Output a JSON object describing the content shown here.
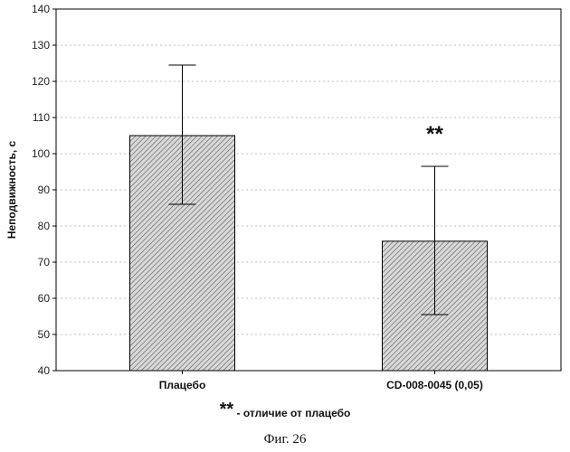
{
  "chart_data": {
    "type": "bar",
    "categories": [
      "Плацебо",
      "CD-008-0045 (0,05)"
    ],
    "values": [
      105,
      75.8
    ],
    "error_upper": [
      124.5,
      96.5
    ],
    "error_lower": [
      86,
      55.5
    ],
    "annotations": [
      {
        "category_index": 1,
        "text": "**"
      }
    ],
    "xlabel": "",
    "ylabel": "Неподвижность, с",
    "ylim": [
      40,
      140
    ],
    "yticks": [
      40,
      50,
      60,
      70,
      80,
      90,
      100,
      110,
      120,
      130,
      140
    ],
    "grid": "horizontal dotted",
    "bar_fill": "diagonal hatch",
    "colors": {
      "bar_fill": "#d9d9d9",
      "hatch": "#555555",
      "axis": "#000000",
      "grid": "#bdbdbd"
    }
  },
  "footnote": {
    "stars": "**",
    "text": "- отличие от плацебо"
  },
  "caption": "Фиг. 26"
}
